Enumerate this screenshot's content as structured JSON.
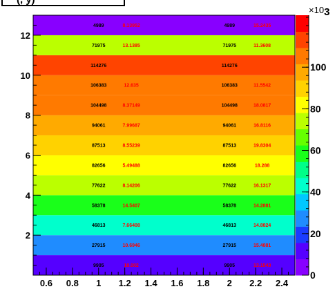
{
  "chart_data": {
    "type": "heatmap",
    "title": "(, y)",
    "x_ticks": [
      "0.6",
      "0.8",
      "1",
      "1.2",
      "1.4",
      "1.6",
      "1.8",
      "2",
      "2.2",
      "2.4"
    ],
    "x_tick_values": [
      0.6,
      0.8,
      1.0,
      1.2,
      1.4,
      1.6,
      1.8,
      2.0,
      2.2,
      2.4
    ],
    "xlim": [
      0.5,
      2.5
    ],
    "y_ticks": [
      "2",
      "4",
      "6",
      "8",
      "10",
      "12"
    ],
    "y_tick_values": [
      2,
      4,
      6,
      8,
      10,
      12
    ],
    "ylim": [
      0,
      13
    ],
    "z_ticks": [
      "0",
      "20",
      "40",
      "60",
      "80",
      "100"
    ],
    "z_tick_values": [
      0,
      20,
      40,
      60,
      80,
      100
    ],
    "zlim": [
      0,
      125
    ],
    "z_exponent_base": "×10",
    "z_exponent_power": "3",
    "count_columns": [
      1.0,
      2.0
    ],
    "error_columns": [
      1.25,
      2.25
    ],
    "rows": [
      {
        "y": 0.5,
        "count": "9905",
        "error": "18.002",
        "value": 9905
      },
      {
        "y": 1.5,
        "count": "27915",
        "error": "10.6946",
        "value": 27915
      },
      {
        "y": 2.5,
        "count": "46813",
        "error": "7.66408",
        "value": 46813
      },
      {
        "y": 3.5,
        "count": "58378",
        "error": "14.5407",
        "value": 58378
      },
      {
        "y": 4.5,
        "count": "77622",
        "error": "8.14206",
        "value": 77622
      },
      {
        "y": 5.5,
        "count": "82656",
        "error": "5.49488",
        "value": 82656
      },
      {
        "y": 6.5,
        "count": "87513",
        "error": "8.55239",
        "value": 87513
      },
      {
        "y": 7.5,
        "count": "94061",
        "error": "7.99687",
        "value": 94061
      },
      {
        "y": 8.5,
        "count": "104498",
        "error": "8.37149",
        "value": 104498
      },
      {
        "y": 9.5,
        "count": "106383",
        "error": "12.635",
        "value": 106383
      },
      {
        "y": 10.5,
        "count": "114276",
        "error": "",
        "value": 114276
      },
      {
        "y": 11.5,
        "count": "71975",
        "error": "13.1385",
        "value": 71975
      },
      {
        "y": 12.5,
        "count": "4989",
        "error": "8.13952",
        "value": 4989
      }
    ],
    "rows_right_errors": [
      "13.1543",
      "15.4881",
      "14.8824",
      "14.2881",
      "16.1317",
      "18.288",
      "19.8304",
      "16.8116",
      "18.0817",
      "11.5542",
      "",
      "11.3608",
      "15.2435"
    ],
    "palette": [
      "#8800ff",
      "#5500ff",
      "#1a3cff",
      "#1f8cff",
      "#00c8ff",
      "#00ffcc",
      "#00ff88",
      "#1aff1a",
      "#66ff00",
      "#bbff00",
      "#ffff00",
      "#ffd200",
      "#ffaa00",
      "#ff7a00",
      "#ff4400",
      "#ff0000"
    ],
    "error_text_color": "#ff0000",
    "count_text_color": "#000000"
  }
}
